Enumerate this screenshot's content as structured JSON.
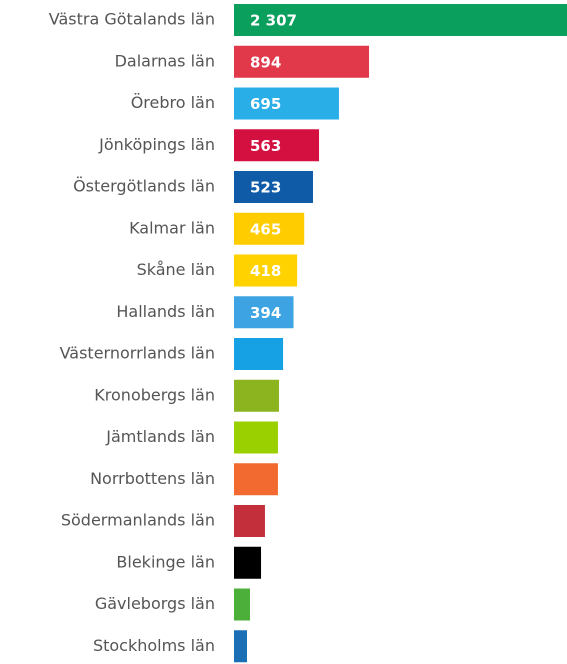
{
  "chart_data": {
    "type": "hbar",
    "categories": [
      "Västra Götalands län",
      "Dalarnas län",
      "Örebro län",
      "Jönköpings län",
      "Östergötlands län",
      "Kalmar län",
      "Skåne län",
      "Hallands län",
      "Västernorrlands län",
      "Kronobergs län",
      "Jämtlands län",
      "Norrbottens län",
      "Södermanlands län",
      "Blekinge län",
      "Gävleborgs län",
      "Stockholms län"
    ],
    "values": [
      2307,
      894,
      695,
      563,
      523,
      465,
      418,
      394,
      325,
      298,
      291,
      291,
      205,
      179,
      106,
      86
    ],
    "value_labels": [
      "2 307",
      "894",
      "695",
      "563",
      "523",
      "465",
      "418",
      "394",
      null,
      null,
      null,
      null,
      null,
      null,
      null,
      null
    ],
    "colors": [
      "#0a9f5c",
      "#e1384a",
      "#2aaee8",
      "#d3103f",
      "#0f5ba8",
      "#ffcc00",
      "#ffd200",
      "#3ea3e2",
      "#17a1e5",
      "#8cb41e",
      "#9bd000",
      "#f26a30",
      "#c3303c",
      "#000000",
      "#4caf3a",
      "#1a6fb5"
    ],
    "xlim": [
      0,
      2205
    ]
  }
}
